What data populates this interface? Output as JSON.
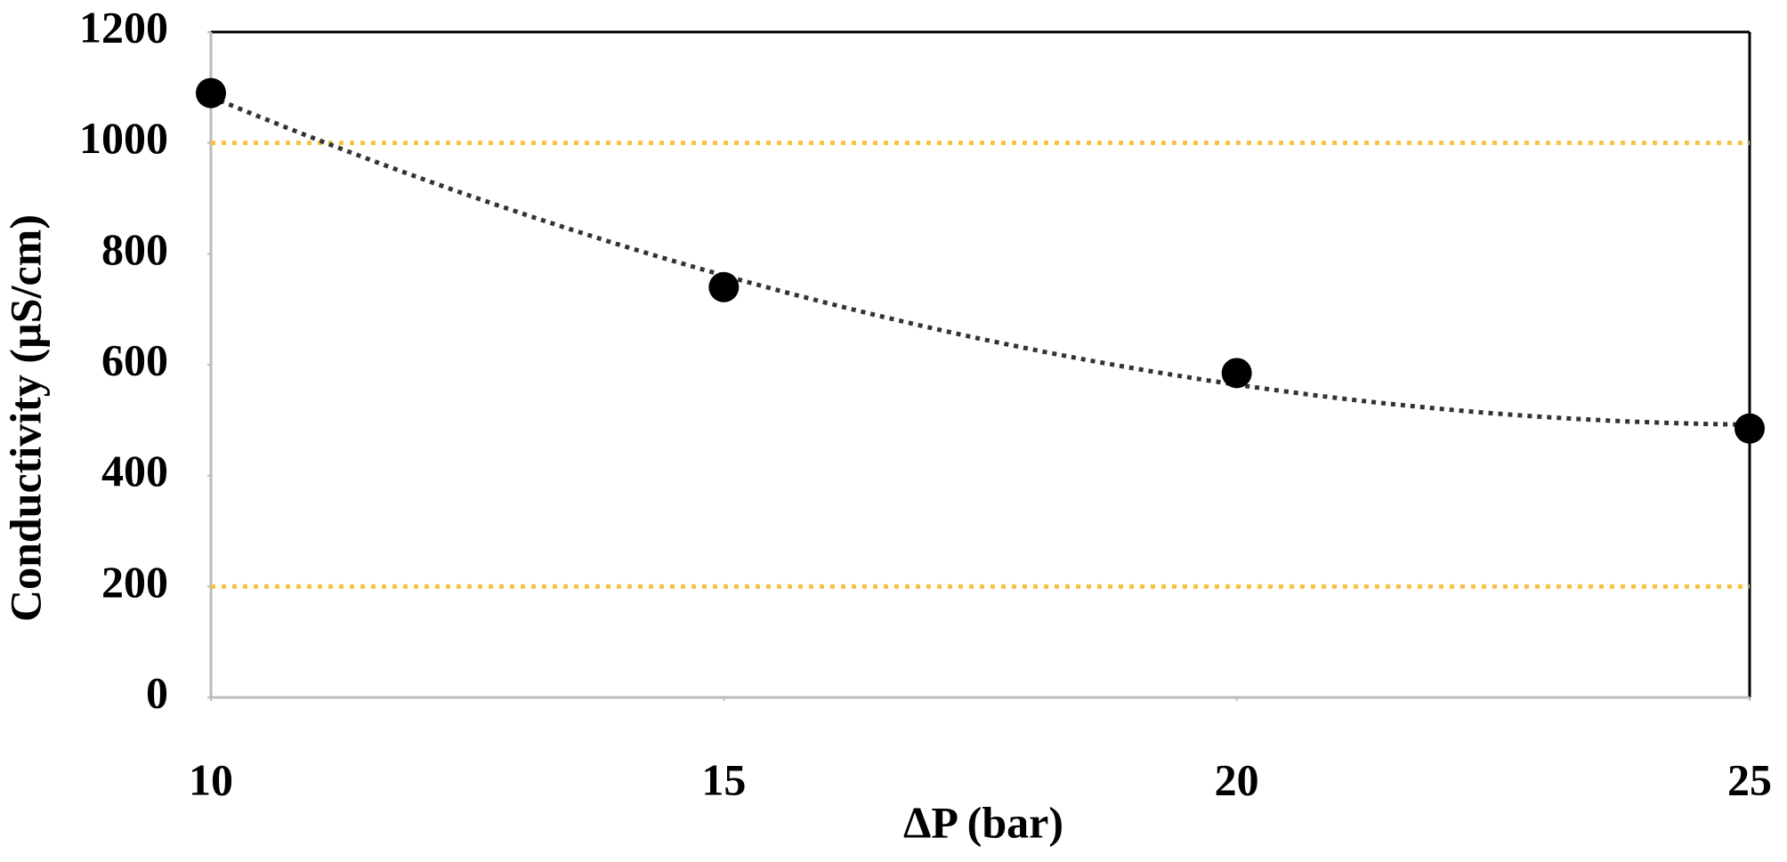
{
  "chart_data": {
    "type": "scatter",
    "x_label": "ΔP (bar)",
    "y_label": "Conductivity (µS/cm)",
    "x": [
      10,
      15,
      20,
      25
    ],
    "series": [
      {
        "name": "Conductivity",
        "color": "#000000",
        "values": [
          1090,
          740,
          585,
          485
        ]
      }
    ],
    "xlim": [
      10,
      25
    ],
    "xticks": [
      10,
      15,
      20,
      25
    ],
    "ylim": [
      0,
      1200
    ],
    "yticks": [
      0,
      200,
      400,
      600,
      800,
      1000,
      1200
    ],
    "reference_lines": [
      {
        "value": 1000,
        "color": "#f5c242"
      },
      {
        "value": 200,
        "color": "#f5c242"
      }
    ],
    "trendline": {
      "type": "polynomial",
      "order": 2,
      "color": "#333333"
    }
  }
}
